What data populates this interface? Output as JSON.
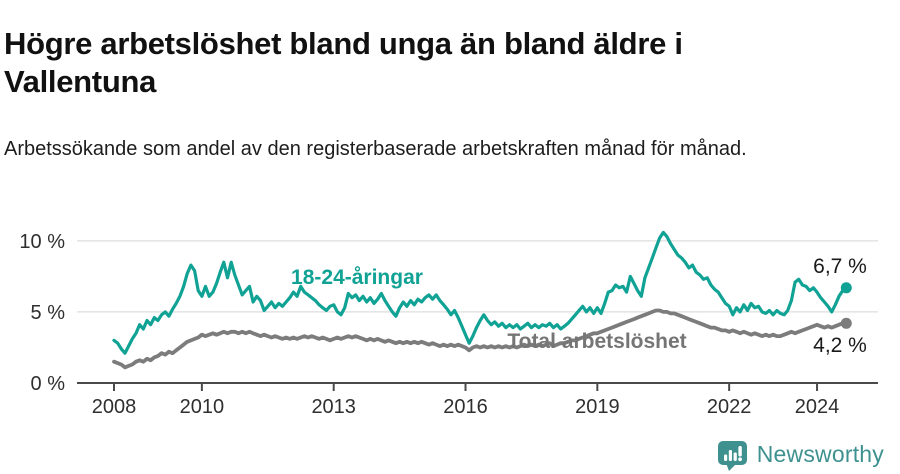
{
  "header": {
    "title": "Högre arbetslöshet bland unga än bland äldre i Vallentuna",
    "subtitle": "Arbetssökande som andel av den registerbaserade arbetskraften månad för månad."
  },
  "chart_data": {
    "type": "line",
    "unit": "%",
    "frequency": "monthly",
    "start_year": 2008,
    "end_label_note": "series end September 2024",
    "ylim": [
      0,
      11
    ],
    "grid": "horizontal-only",
    "y_ticks": [
      {
        "value": 0,
        "label": "0 %"
      },
      {
        "value": 5,
        "label": "5 %"
      },
      {
        "value": 10,
        "label": "10 %"
      }
    ],
    "x_ticks": [
      {
        "year": 2008,
        "label": "2008"
      },
      {
        "year": 2010,
        "label": "2010"
      },
      {
        "year": 2013,
        "label": "2013"
      },
      {
        "year": 2016,
        "label": "2016"
      },
      {
        "year": 2019,
        "label": "2019"
      },
      {
        "year": 2022,
        "label": "2022"
      },
      {
        "year": 2024,
        "label": "2024"
      }
    ],
    "series": [
      {
        "name": "18-24-åringar",
        "color": "#10a294",
        "end_label": "6,7 %",
        "end_value": 6.7,
        "values": [
          3.0,
          2.8,
          2.4,
          2.1,
          2.6,
          3.1,
          3.5,
          4.1,
          3.8,
          4.4,
          4.1,
          4.6,
          4.4,
          4.8,
          5.0,
          4.7,
          5.2,
          5.6,
          6.1,
          6.8,
          7.7,
          8.3,
          7.9,
          6.5,
          6.1,
          6.8,
          6.1,
          6.4,
          7.0,
          7.8,
          8.5,
          7.4,
          8.5,
          7.6,
          6.9,
          6.2,
          6.5,
          6.8,
          5.7,
          6.1,
          5.8,
          5.1,
          5.4,
          5.7,
          5.3,
          5.6,
          5.4,
          5.7,
          6.0,
          6.4,
          6.1,
          6.8,
          6.4,
          6.2,
          6.0,
          5.8,
          5.5,
          5.3,
          5.1,
          5.4,
          5.5,
          5.0,
          4.8,
          5.3,
          6.3,
          6.0,
          6.2,
          5.8,
          6.1,
          5.7,
          6.0,
          5.6,
          5.9,
          6.3,
          5.8,
          5.4,
          5.0,
          4.7,
          5.3,
          5.7,
          5.4,
          5.8,
          5.5,
          5.9,
          5.7,
          6.0,
          6.2,
          5.9,
          6.2,
          5.8,
          5.5,
          5.2,
          4.8,
          5.1,
          4.6,
          4.0,
          3.4,
          2.8,
          3.3,
          3.9,
          4.4,
          4.8,
          4.4,
          4.1,
          4.3,
          4.0,
          4.2,
          3.9,
          4.1,
          3.9,
          4.1,
          3.8,
          4.0,
          4.2,
          3.9,
          4.1,
          3.9,
          4.1,
          4.0,
          4.2,
          3.9,
          4.1,
          3.8,
          4.0,
          4.2,
          4.5,
          4.8,
          5.1,
          5.4,
          5.0,
          5.3,
          4.9,
          5.3,
          4.9,
          5.6,
          6.4,
          6.5,
          6.9,
          6.7,
          6.8,
          6.4,
          7.5,
          7.0,
          6.5,
          6.1,
          7.4,
          8.1,
          8.8,
          9.5,
          10.2,
          10.6,
          10.3,
          9.8,
          9.4,
          9.0,
          8.8,
          8.5,
          8.1,
          8.3,
          7.8,
          7.6,
          7.3,
          7.4,
          6.9,
          6.6,
          6.4,
          6.0,
          5.6,
          5.4,
          4.8,
          5.3,
          5.0,
          5.5,
          5.1,
          5.6,
          5.3,
          5.4,
          5.0,
          4.9,
          5.1,
          4.8,
          5.1,
          4.9,
          4.8,
          5.1,
          5.8,
          7.1,
          7.3,
          6.9,
          6.8,
          6.5,
          6.7,
          6.4,
          6.0,
          5.7,
          5.4,
          5.0,
          5.5,
          6.1,
          6.5,
          6.7
        ]
      },
      {
        "name": "Total arbetslöshet",
        "color": "#7c7c7c",
        "end_label": "4,2 %",
        "end_value": 4.2,
        "values": [
          1.5,
          1.4,
          1.3,
          1.1,
          1.2,
          1.3,
          1.5,
          1.6,
          1.5,
          1.7,
          1.6,
          1.8,
          1.9,
          2.1,
          2.0,
          2.2,
          2.1,
          2.3,
          2.5,
          2.7,
          2.9,
          3.0,
          3.1,
          3.2,
          3.4,
          3.3,
          3.4,
          3.5,
          3.4,
          3.5,
          3.6,
          3.5,
          3.6,
          3.6,
          3.5,
          3.6,
          3.5,
          3.6,
          3.5,
          3.4,
          3.3,
          3.4,
          3.3,
          3.2,
          3.3,
          3.2,
          3.1,
          3.2,
          3.1,
          3.2,
          3.1,
          3.2,
          3.3,
          3.2,
          3.3,
          3.2,
          3.1,
          3.2,
          3.1,
          3.0,
          3.1,
          3.2,
          3.1,
          3.2,
          3.3,
          3.2,
          3.3,
          3.2,
          3.1,
          3.0,
          3.1,
          3.0,
          3.1,
          3.0,
          2.9,
          3.0,
          2.9,
          2.8,
          2.9,
          2.8,
          2.9,
          2.8,
          2.9,
          2.8,
          2.9,
          2.8,
          2.7,
          2.8,
          2.7,
          2.6,
          2.7,
          2.6,
          2.7,
          2.6,
          2.7,
          2.6,
          2.5,
          2.3,
          2.5,
          2.6,
          2.5,
          2.6,
          2.5,
          2.6,
          2.5,
          2.6,
          2.5,
          2.6,
          2.5,
          2.6,
          2.5,
          2.6,
          2.7,
          2.6,
          2.7,
          2.6,
          2.7,
          2.6,
          2.7,
          2.8,
          2.6,
          2.7,
          2.8,
          2.8,
          2.9,
          3.0,
          3.0,
          3.1,
          3.2,
          3.3,
          3.4,
          3.5,
          3.5,
          3.6,
          3.7,
          3.8,
          3.9,
          4.0,
          4.1,
          4.2,
          4.3,
          4.4,
          4.5,
          4.6,
          4.7,
          4.8,
          4.9,
          5.0,
          5.1,
          5.1,
          5.0,
          5.0,
          4.9,
          4.9,
          4.8,
          4.7,
          4.6,
          4.5,
          4.4,
          4.3,
          4.2,
          4.1,
          4.0,
          3.9,
          3.9,
          3.8,
          3.7,
          3.7,
          3.6,
          3.7,
          3.6,
          3.5,
          3.6,
          3.5,
          3.4,
          3.5,
          3.4,
          3.3,
          3.4,
          3.3,
          3.4,
          3.3,
          3.3,
          3.4,
          3.5,
          3.6,
          3.5,
          3.6,
          3.7,
          3.8,
          3.9,
          4.0,
          4.1,
          4.0,
          3.9,
          4.0,
          3.9,
          4.0,
          4.1,
          4.2,
          4.2
        ]
      }
    ]
  },
  "footer": {
    "brand": "Newsworthy",
    "brand_color": "#3e918f"
  }
}
